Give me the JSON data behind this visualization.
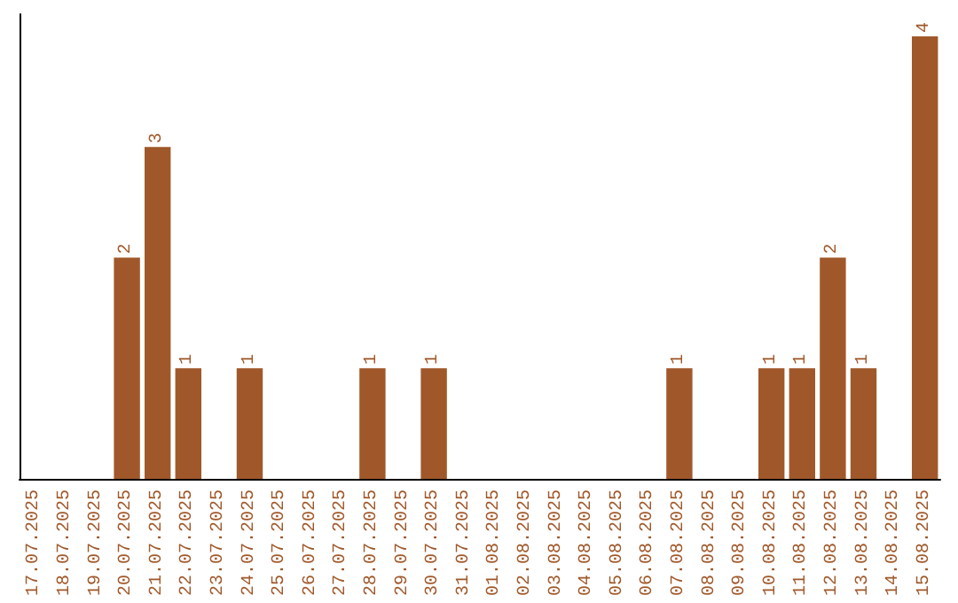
{
  "chart_data": {
    "type": "bar",
    "categories": [
      "17.07.2025",
      "18.07.2025",
      "19.07.2025",
      "20.07.2025",
      "21.07.2025",
      "22.07.2025",
      "23.07.2025",
      "24.07.2025",
      "25.07.2025",
      "26.07.2025",
      "27.07.2025",
      "28.07.2025",
      "29.07.2025",
      "30.07.2025",
      "31.07.2025",
      "01.08.2025",
      "02.08.2025",
      "03.08.2025",
      "04.08.2025",
      "05.08.2025",
      "06.08.2025",
      "07.08.2025",
      "08.08.2025",
      "09.08.2025",
      "10.08.2025",
      "11.08.2025",
      "12.08.2025",
      "13.08.2025",
      "14.08.2025",
      "15.08.2025"
    ],
    "values": [
      0,
      0,
      0,
      2,
      3,
      1,
      0,
      1,
      0,
      0,
      0,
      1,
      0,
      1,
      0,
      0,
      0,
      0,
      0,
      0,
      0,
      1,
      0,
      0,
      1,
      1,
      2,
      1,
      0,
      4
    ],
    "value_labels": [
      null,
      null,
      null,
      "2",
      "3",
      "1",
      null,
      "1",
      null,
      null,
      null,
      "1",
      null,
      "1",
      null,
      null,
      null,
      null,
      null,
      null,
      null,
      "1",
      null,
      null,
      "1",
      "1",
      "2",
      "1",
      null,
      "4"
    ],
    "color": "#a0582a",
    "tick_labels": "x"
  }
}
